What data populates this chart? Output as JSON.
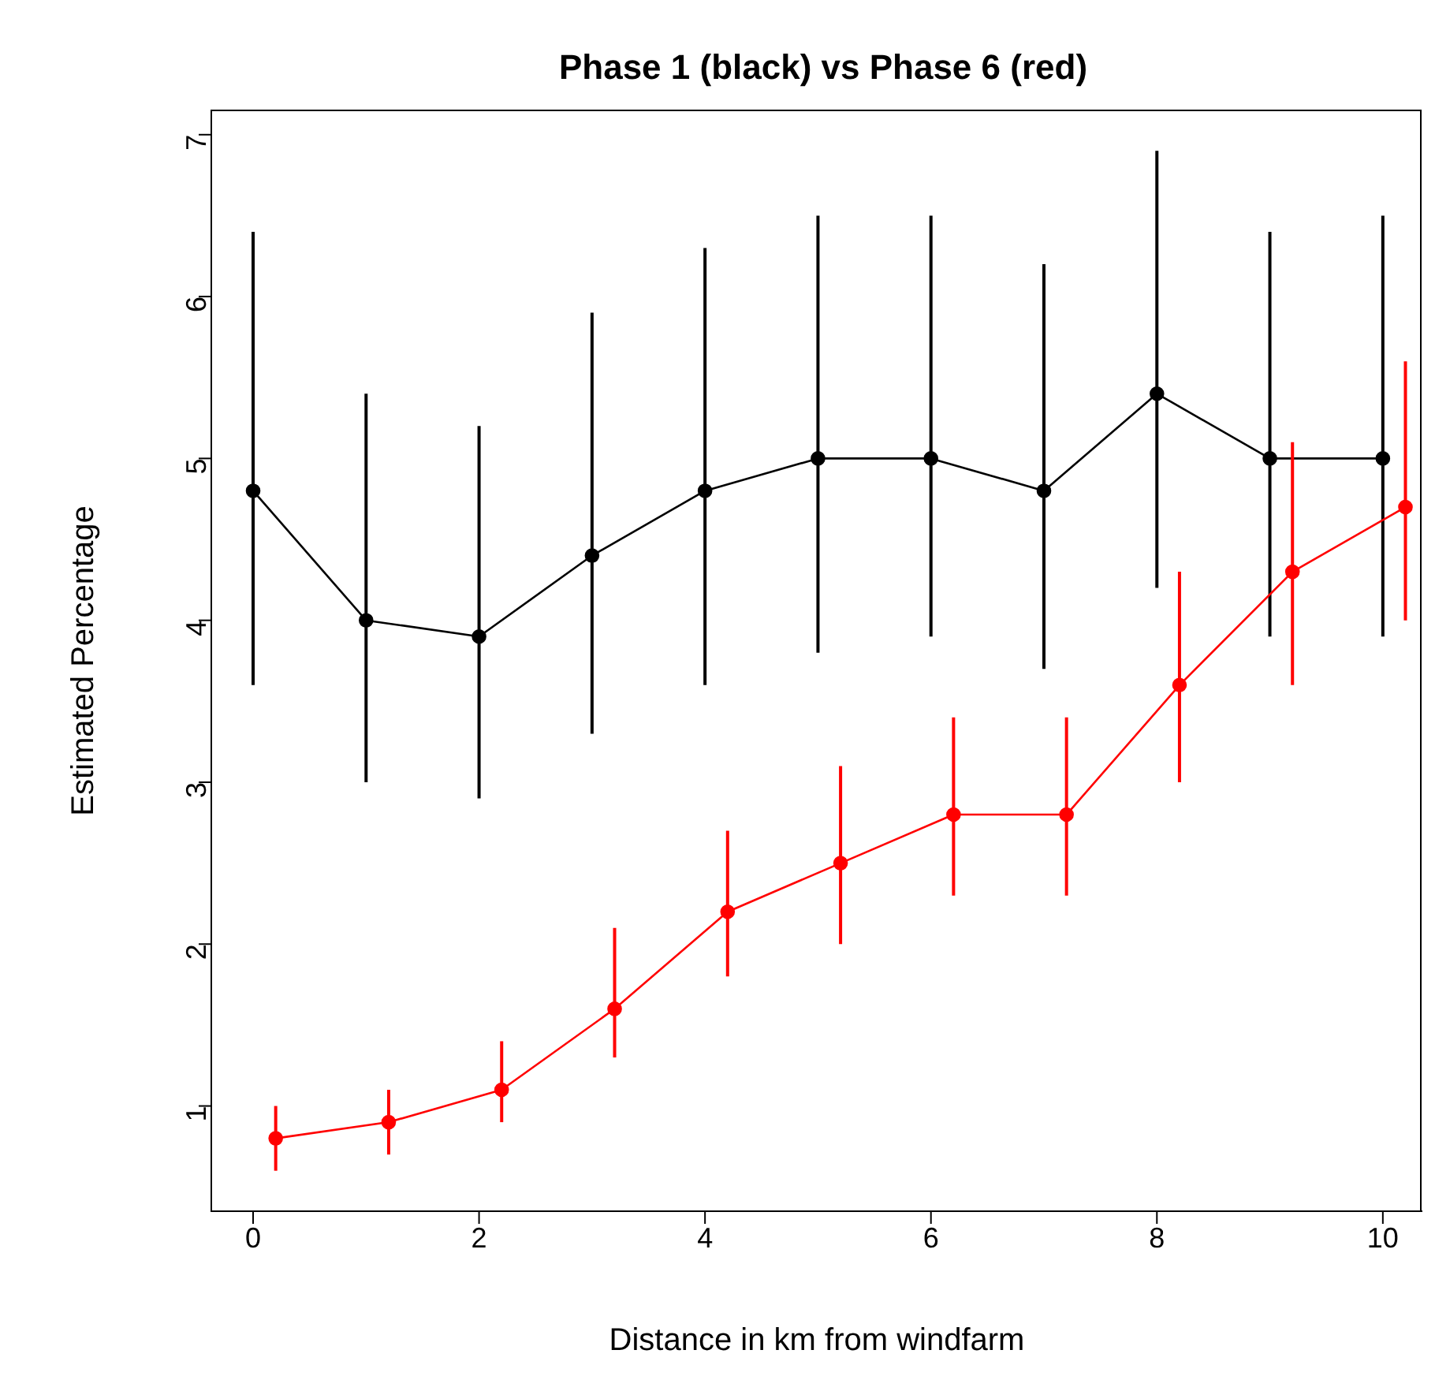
{
  "chart_data": {
    "type": "line",
    "title": "Phase 1 (black) vs Phase 6 (red)",
    "xlabel": "Distance in km from windfarm",
    "ylabel": "Estimated Percentage",
    "xlim": [
      -0.37,
      10.35
    ],
    "xticks": [
      0,
      2,
      4,
      6,
      8,
      10
    ],
    "ylim": [
      0.35,
      7.15
    ],
    "yticks": [
      1,
      2,
      3,
      4,
      5,
      6,
      7
    ],
    "grid": false,
    "legend": false,
    "marker": "circle",
    "line_style": "solid",
    "series": [
      {
        "color": "#000000",
        "x": [
          0,
          1,
          2,
          3,
          4,
          5,
          6,
          7,
          8,
          9,
          10
        ],
        "values": [
          4.8,
          4.0,
          3.9,
          4.4,
          4.8,
          5.0,
          5.0,
          4.8,
          5.4,
          5.0,
          5.0
        ],
        "errors": [
          [
            3.6,
            6.4
          ],
          [
            3.0,
            5.4
          ],
          [
            2.9,
            5.2
          ],
          [
            3.3,
            5.9
          ],
          [
            3.6,
            6.3
          ],
          [
            3.8,
            6.5
          ],
          [
            3.9,
            6.5
          ],
          [
            3.7,
            6.2
          ],
          [
            4.2,
            6.9
          ],
          [
            3.9,
            6.4
          ],
          [
            3.9,
            6.5
          ]
        ]
      },
      {
        "color": "#ff0000",
        "x": [
          0.2,
          1.2,
          2.2,
          3.2,
          4.2,
          5.2,
          6.2,
          7.2,
          8.2,
          9.2,
          10.2
        ],
        "values": [
          0.8,
          0.9,
          1.1,
          1.6,
          2.2,
          2.5,
          2.8,
          2.8,
          3.6,
          4.3,
          4.7
        ],
        "errors": [
          [
            0.6,
            1.0
          ],
          [
            0.7,
            1.1
          ],
          [
            0.9,
            1.4
          ],
          [
            1.3,
            2.1
          ],
          [
            1.8,
            2.7
          ],
          [
            2.0,
            3.1
          ],
          [
            2.3,
            3.4
          ],
          [
            2.3,
            3.4
          ],
          [
            3.0,
            4.3
          ],
          [
            3.6,
            5.1
          ],
          [
            4.0,
            5.6
          ]
        ]
      }
    ]
  }
}
